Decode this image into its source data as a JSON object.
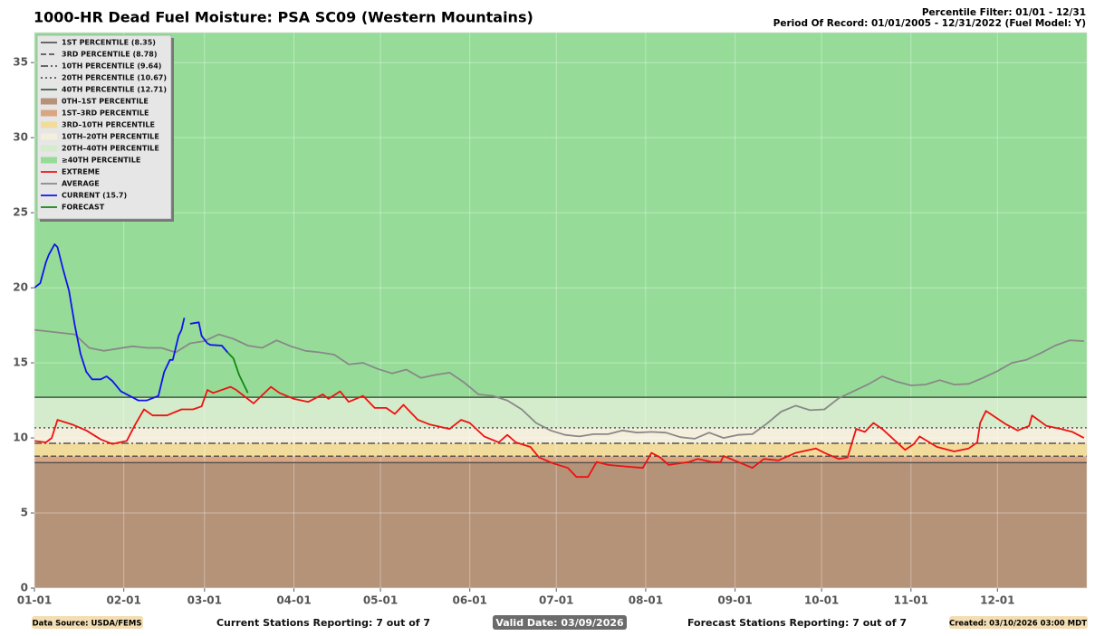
{
  "chart_data": {
    "type": "line",
    "title": "1000-HR Dead Fuel Moisture: PSA SC09 (Western Mountains)",
    "header_right": [
      "Percentile Filter: 01/01 - 12/31",
      "Period Of Record: 01/01/2005 - 12/31/2022 (Fuel Model: Y)"
    ],
    "xlim": [
      1,
      366
    ],
    "xticks": [
      {
        "value": 1,
        "label": "01-01"
      },
      {
        "value": 32,
        "label": "02-01"
      },
      {
        "value": 60,
        "label": "03-01"
      },
      {
        "value": 91,
        "label": "04-01"
      },
      {
        "value": 121,
        "label": "05-01"
      },
      {
        "value": 152,
        "label": "06-01"
      },
      {
        "value": 182,
        "label": "07-01"
      },
      {
        "value": 213,
        "label": "08-01"
      },
      {
        "value": 244,
        "label": "09-01"
      },
      {
        "value": 274,
        "label": "10-01"
      },
      {
        "value": 305,
        "label": "11-01"
      },
      {
        "value": 335,
        "label": "12-01"
      }
    ],
    "ylim": [
      0,
      37
    ],
    "yticks": [
      0,
      5,
      10,
      15,
      20,
      25,
      30,
      35
    ],
    "grid": true,
    "legend": "upper left",
    "percentiles": [
      {
        "name": "1ST PERCENTILE (8.35)",
        "value": 8.35,
        "color": "#555555",
        "dash": "solid"
      },
      {
        "name": "3RD PERCENTILE (8.78)",
        "value": 8.78,
        "color": "#555555",
        "dash": "dashed"
      },
      {
        "name": "10TH PERCENTILE (9.64)",
        "value": 9.64,
        "color": "#555555",
        "dash": "dashdot"
      },
      {
        "name": "20TH PERCENTILE (10.67)",
        "value": 10.67,
        "color": "#555555",
        "dash": "dotted"
      },
      {
        "name": "40TH PERCENTILE (12.71)",
        "value": 12.71,
        "color": "#3d5a40",
        "dash": "solid"
      }
    ],
    "bands": [
      {
        "name": "0TH–1ST PERCENTILE",
        "color": "#b59379"
      },
      {
        "name": "1ST–3RD PERCENTILE",
        "color": "#d9a67f"
      },
      {
        "name": "3RD–10TH PERCENTILE",
        "color": "#f2dc9c"
      },
      {
        "name": "10TH–20TH PERCENTILE",
        "color": "#f4efdc"
      },
      {
        "name": "20TH–40TH PERCENTILE",
        "color": "#d4eccb"
      },
      {
        "name": "≥40TH PERCENTILE",
        "color": "#96dc98"
      }
    ],
    "series": [
      {
        "name": "EXTREME",
        "color": "#ee1111",
        "x": [
          1,
          5,
          7,
          9,
          14,
          19,
          24,
          28,
          33,
          36,
          39,
          42,
          47,
          52,
          56,
          59,
          61,
          63,
          69,
          71,
          77,
          83,
          86,
          91,
          96,
          101,
          103,
          107,
          110,
          115,
          119,
          123,
          126,
          129,
          134,
          138,
          145,
          149,
          152,
          157,
          162,
          165,
          168,
          173,
          176,
          181,
          186,
          189,
          193,
          196,
          200,
          206,
          212,
          215,
          218,
          221,
          228,
          231,
          236,
          239,
          240,
          245,
          250,
          254,
          259,
          265,
          272,
          275,
          280,
          283,
          286,
          289,
          292,
          295,
          303,
          306,
          308,
          314,
          320,
          325,
          328,
          329,
          331,
          338,
          342,
          346,
          347,
          352,
          357,
          361,
          365
        ],
        "values": [
          9.8,
          9.7,
          10.0,
          11.2,
          10.9,
          10.5,
          9.9,
          9.6,
          9.8,
          10.9,
          11.9,
          11.5,
          11.5,
          11.9,
          11.9,
          12.1,
          13.2,
          13.0,
          13.4,
          13.2,
          12.3,
          13.4,
          13.0,
          12.6,
          12.4,
          12.9,
          12.6,
          13.1,
          12.4,
          12.8,
          12.0,
          12.0,
          11.6,
          12.2,
          11.2,
          10.9,
          10.6,
          11.2,
          11.0,
          10.1,
          9.7,
          10.2,
          9.7,
          9.4,
          8.7,
          8.3,
          8.0,
          7.4,
          7.4,
          8.4,
          8.2,
          8.1,
          8.0,
          9.0,
          8.7,
          8.2,
          8.4,
          8.6,
          8.4,
          8.4,
          8.8,
          8.4,
          8.0,
          8.6,
          8.5,
          9.0,
          9.3,
          9.0,
          8.6,
          8.7,
          10.6,
          10.4,
          11.0,
          10.6,
          9.2,
          9.6,
          10.1,
          9.4,
          9.1,
          9.3,
          9.7,
          11.0,
          11.8,
          10.9,
          10.5,
          10.8,
          11.5,
          10.8,
          10.6,
          10.4,
          10.0
        ]
      },
      {
        "name": "AVERAGE",
        "color": "#888888",
        "x": [
          1,
          15,
          20,
          25,
          30,
          35,
          40,
          45,
          50,
          55,
          60,
          65,
          70,
          75,
          80,
          85,
          90,
          95,
          100,
          105,
          110,
          115,
          120,
          125,
          130,
          135,
          140,
          145,
          150,
          155,
          160,
          165,
          170,
          175,
          180,
          185,
          190,
          195,
          200,
          205,
          210,
          215,
          220,
          225,
          230,
          235,
          240,
          245,
          250,
          255,
          260,
          265,
          270,
          275,
          280,
          285,
          290,
          295,
          300,
          305,
          310,
          315,
          320,
          325,
          330,
          335,
          340,
          345,
          350,
          355,
          360,
          365
        ],
        "values": [
          17.2,
          16.9,
          16.0,
          15.8,
          15.95,
          16.1,
          16.0,
          16.0,
          15.7,
          16.3,
          16.45,
          16.9,
          16.6,
          16.15,
          16.0,
          16.5,
          16.1,
          15.8,
          15.7,
          15.55,
          14.9,
          15.0,
          14.6,
          14.3,
          14.55,
          14.0,
          14.2,
          14.35,
          13.7,
          12.9,
          12.8,
          12.5,
          11.9,
          11.0,
          10.5,
          10.2,
          10.1,
          10.25,
          10.25,
          10.5,
          10.35,
          10.4,
          10.35,
          10.05,
          9.95,
          10.35,
          10.0,
          10.2,
          10.25,
          10.95,
          11.75,
          12.15,
          11.85,
          11.9,
          12.65,
          13.1,
          13.55,
          14.1,
          13.75,
          13.5,
          13.55,
          13.85,
          13.55,
          13.6,
          14.0,
          14.45,
          15.0,
          15.2,
          15.65,
          16.15,
          16.5,
          16.45
        ]
      },
      {
        "name": "CURRENT (15.7)",
        "color": "#1111ee",
        "x": [
          1,
          3,
          5,
          6,
          8,
          9,
          11,
          13,
          15,
          17,
          19,
          21,
          24,
          26,
          28,
          31,
          35,
          37,
          40,
          44,
          46,
          48,
          49,
          51,
          52,
          53,
          54,
          55,
          58,
          59,
          61,
          62,
          66,
          68
        ],
        "values": [
          20.0,
          20.3,
          21.7,
          22.2,
          22.9,
          22.7,
          21.2,
          19.8,
          17.5,
          15.6,
          14.4,
          13.9,
          13.9,
          14.1,
          13.8,
          13.1,
          12.7,
          12.5,
          12.5,
          12.8,
          14.4,
          15.2,
          15.2,
          16.8,
          17.2,
          18.0,
          null,
          17.6,
          17.7,
          16.8,
          16.3,
          16.2,
          16.15,
          15.7
        ]
      },
      {
        "name": "FORECAST",
        "color": "#118811",
        "x": [
          68,
          70,
          72,
          74,
          75
        ],
        "values": [
          15.7,
          15.3,
          14.2,
          13.4,
          13.0
        ]
      }
    ]
  },
  "footer": {
    "source": "Data Source: USDA/FEMS",
    "current": "Current Stations Reporting: 7 out of 7",
    "valid": "Valid Date: 03/09/2026",
    "forecast": "Forecast Stations Reporting: 7 out of 7",
    "created": "Created: 03/10/2026 03:00 MDT"
  }
}
